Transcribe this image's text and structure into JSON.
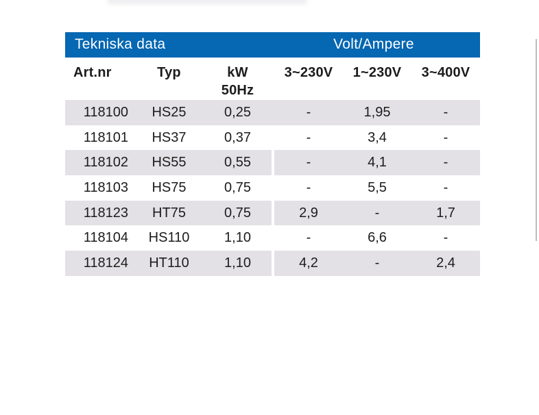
{
  "colors": {
    "header_blue": "#0667b2",
    "row_shade_gray": "#e3e1e5",
    "title_text": "#ffffff",
    "body_text": "#1c1c1c",
    "edge_line_gray": "#bcbcc2"
  },
  "table": {
    "title_left": "Tekniska data",
    "title_right": "Volt/Ampere",
    "columns": [
      {
        "id": "artnr",
        "label": "Art.nr"
      },
      {
        "id": "typ",
        "label": "Typ"
      },
      {
        "id": "kw",
        "label": "kW",
        "sublabel": "50Hz"
      },
      {
        "id": "v3_230",
        "label": "3~230V"
      },
      {
        "id": "v1_230",
        "label": "1~230V"
      },
      {
        "id": "v3_400",
        "label": "3~400V"
      }
    ],
    "rows": [
      {
        "artnr": "118100",
        "typ": "HS25",
        "kw": "0,25",
        "v3_230": "-",
        "v1_230": "1,95",
        "v3_400": "-",
        "shaded": true,
        "split_gap": false
      },
      {
        "artnr": "118101",
        "typ": "HS37",
        "kw": "0,37",
        "v3_230": "-",
        "v1_230": "3,4",
        "v3_400": "-",
        "shaded": false,
        "split_gap": false
      },
      {
        "artnr": "118102",
        "typ": "HS55",
        "kw": "0,55",
        "v3_230": "-",
        "v1_230": "4,1",
        "v3_400": "-",
        "shaded": true,
        "split_gap": true
      },
      {
        "artnr": "118103",
        "typ": "HS75",
        "kw": "0,75",
        "v3_230": "-",
        "v1_230": "5,5",
        "v3_400": "-",
        "shaded": false,
        "split_gap": false
      },
      {
        "artnr": "118123",
        "typ": "HT75",
        "kw": "0,75",
        "v3_230": "2,9",
        "v1_230": "-",
        "v3_400": "1,7",
        "shaded": true,
        "split_gap": true
      },
      {
        "artnr": "118104",
        "typ": "HS110",
        "kw": "1,10",
        "v3_230": "-",
        "v1_230": "6,6",
        "v3_400": "-",
        "shaded": false,
        "split_gap": false
      },
      {
        "artnr": "118124",
        "typ": "HT110",
        "kw": "1,10",
        "v3_230": "4,2",
        "v1_230": "-",
        "v3_400": "2,4",
        "shaded": true,
        "split_gap": true
      }
    ]
  }
}
